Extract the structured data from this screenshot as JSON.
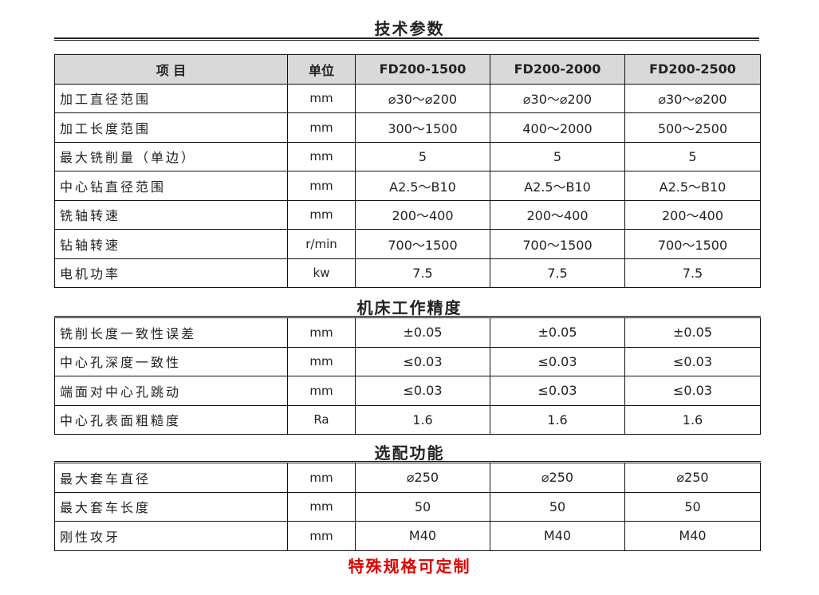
{
  "title": "技术参数",
  "headers": [
    "项 目",
    "单位",
    "FD200-1500",
    "FD200-2000",
    "FD200-2500"
  ],
  "specs": [
    [
      "加工直径范围",
      "mm",
      "⌀30～⌀200",
      "⌀30～⌀200",
      "⌀30～⌀200"
    ],
    [
      "加工长度范围",
      "mm",
      "300～1500",
      "400～2000",
      "500～2500"
    ],
    [
      "最大铣削量（单边）",
      "mm",
      "5",
      "5",
      "5"
    ],
    [
      "中心钻直径范围",
      "mm",
      "A2.5～B10",
      "A2.5～B10",
      "A2.5～B10"
    ],
    [
      "铣轴转速",
      "mm",
      "200～400",
      "200～400",
      "200～400"
    ],
    [
      "钻轴转速",
      "r/min",
      "700～1500",
      "700～1500",
      "700～1500"
    ],
    [
      "电机功率",
      "kw",
      "7.5",
      "7.5",
      "7.5"
    ]
  ],
  "precision_title": "机床工作精度",
  "precision": [
    [
      "铣削长度一致性误差",
      "mm",
      "±0.05",
      "±0.05",
      "±0.05"
    ],
    [
      "中心孔深度一致性",
      "mm",
      "≤0.03",
      "≤0.03",
      "≤0.03"
    ],
    [
      "端面对中心孔跳动",
      "mm",
      "≤0.03",
      "≤0.03",
      "≤0.03"
    ],
    [
      "中心孔表面粗糙度",
      "Ra",
      "1.6",
      "1.6",
      "1.6"
    ]
  ],
  "options_title": "选配功能",
  "options": [
    [
      "最大套车直径",
      "mm",
      "⌀250",
      "⌀250",
      "⌀250"
    ],
    [
      "最大套车长度",
      "mm",
      "50",
      "50",
      "50"
    ],
    [
      "刚性攻牙",
      "mm",
      "M40",
      "M40",
      "M40"
    ]
  ],
  "footer_note": "特殊规格可定制",
  "colors": {
    "header_bg": "#d9d9d9",
    "note": "#e00000"
  }
}
